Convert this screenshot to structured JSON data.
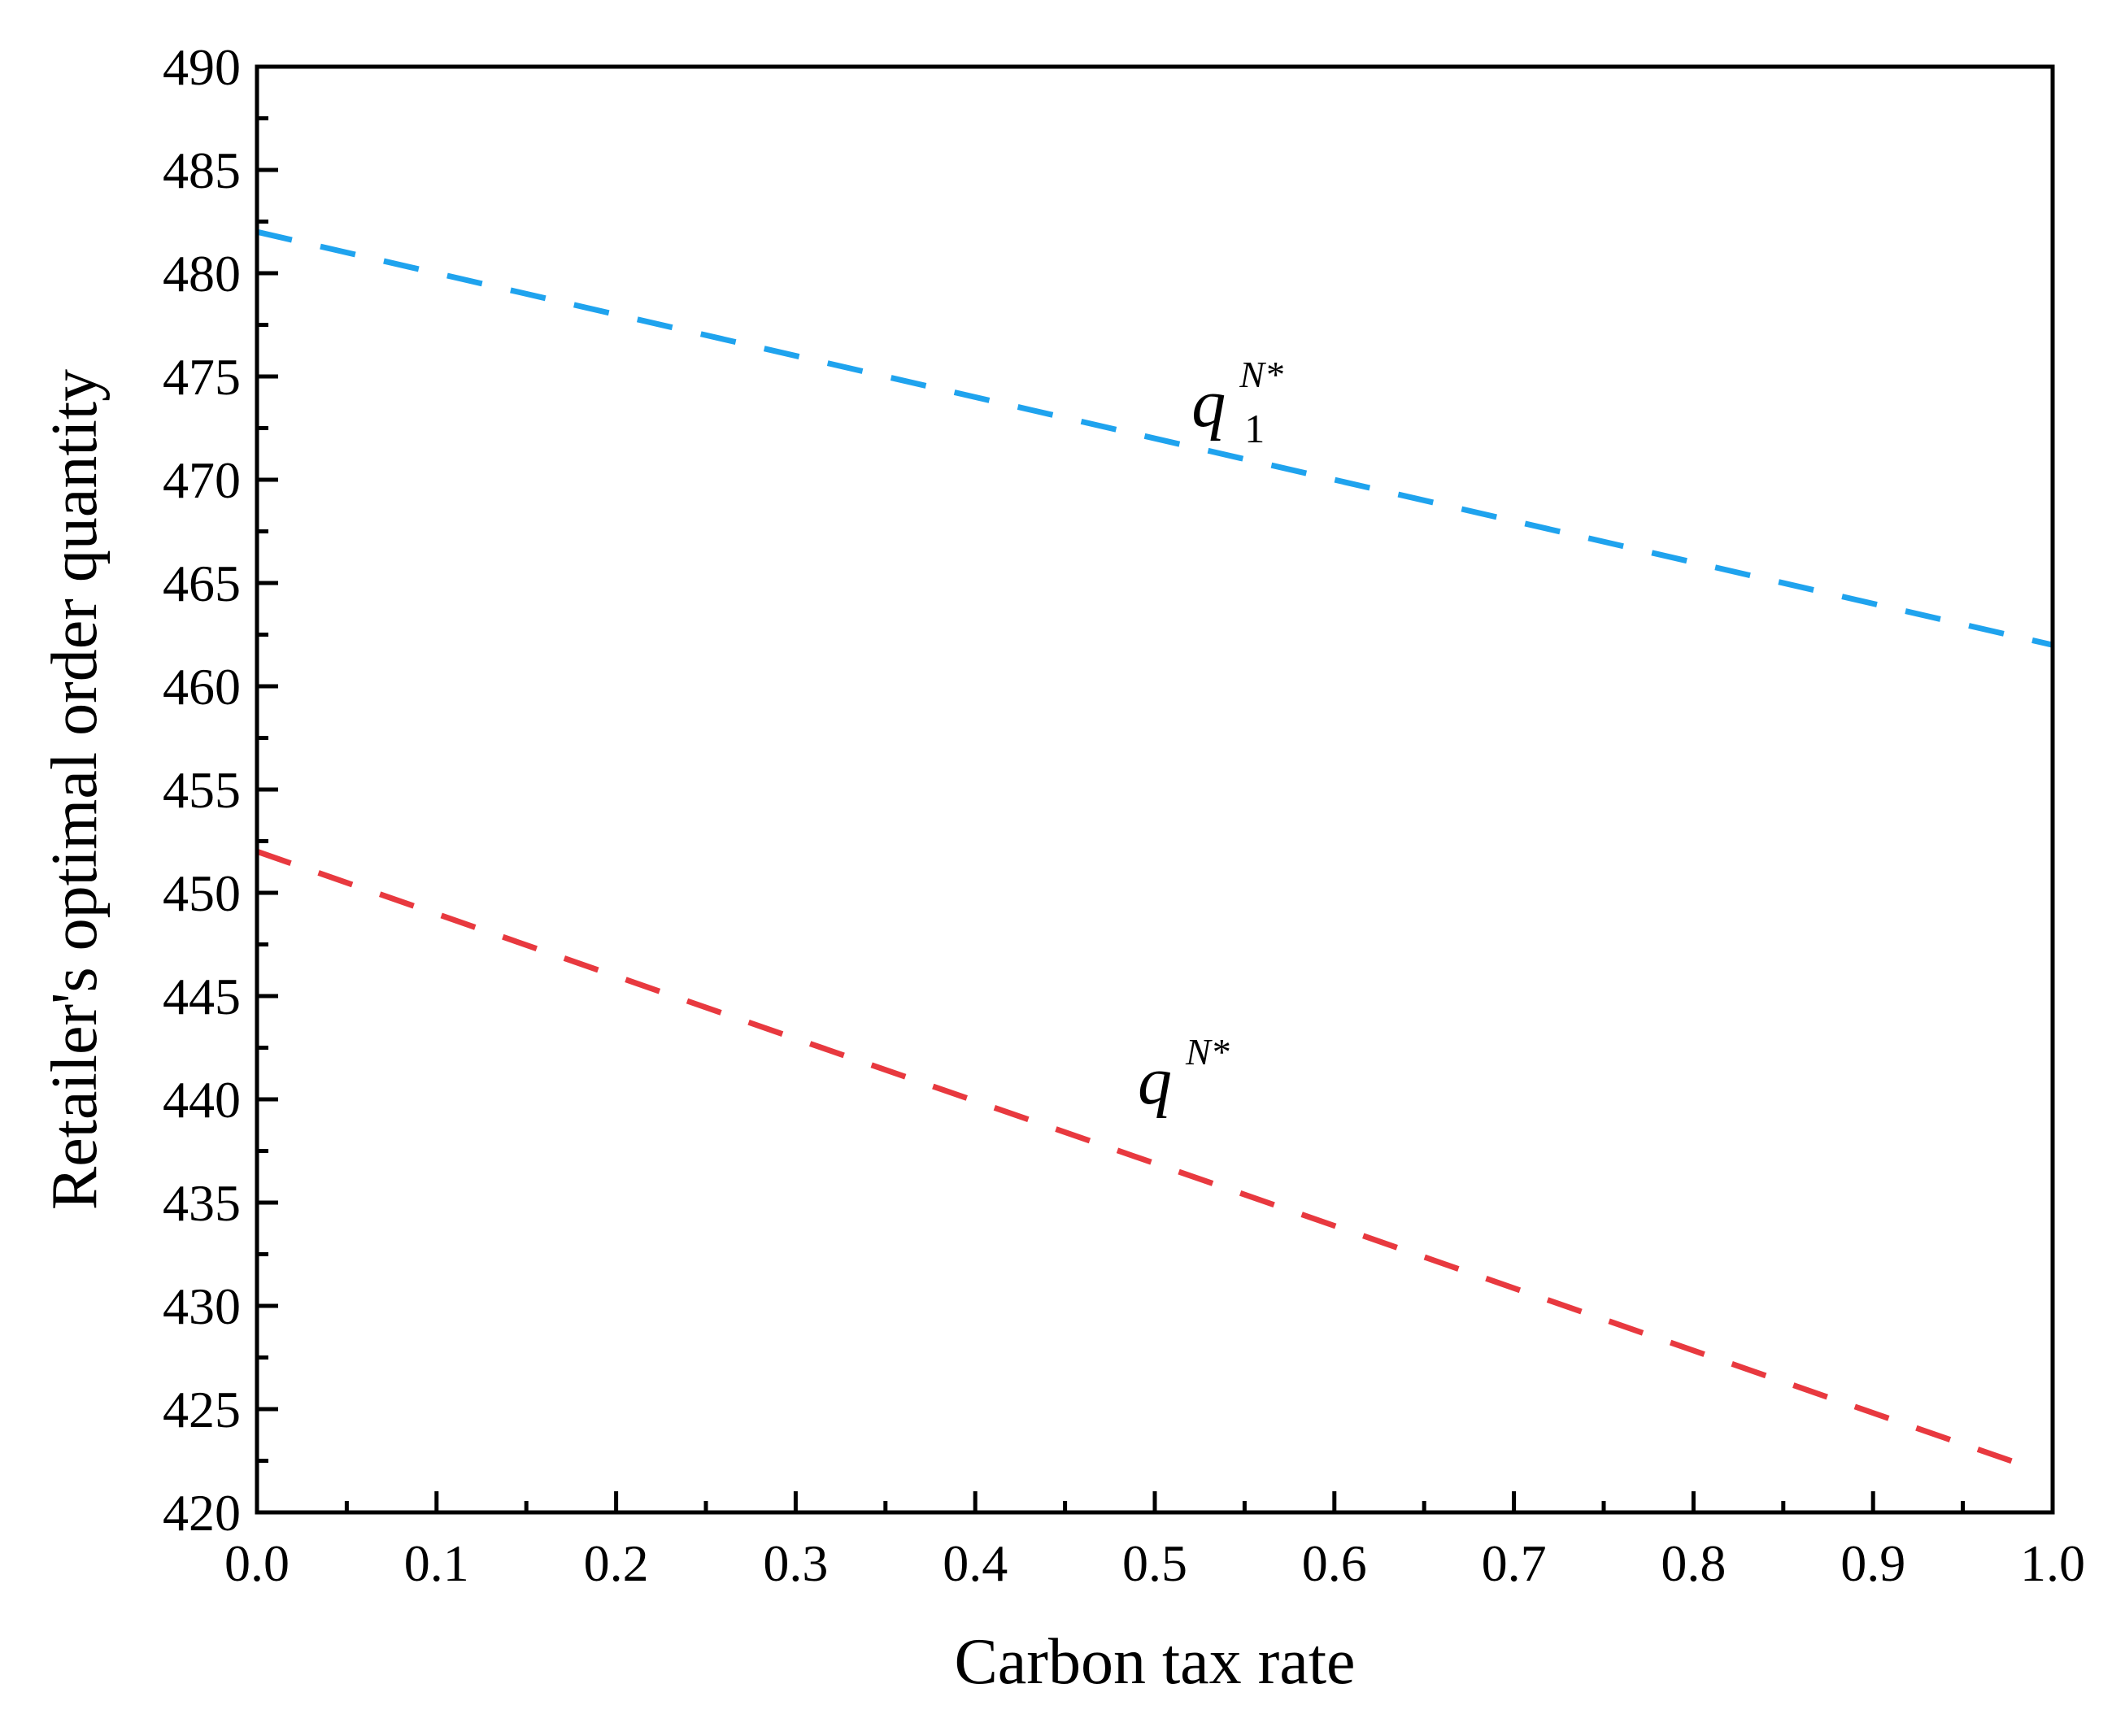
{
  "chart_data": {
    "type": "line",
    "title": "",
    "xlabel": "Carbon tax rate",
    "ylabel": "Retailer's optimal order quantity",
    "xlim": [
      0.0,
      1.0
    ],
    "ylim": [
      420,
      490
    ],
    "x_ticks": [
      "0.0",
      "0.1",
      "0.2",
      "0.3",
      "0.4",
      "0.5",
      "0.6",
      "0.7",
      "0.8",
      "0.9",
      "1.0"
    ],
    "y_ticks": [
      "420",
      "425",
      "430",
      "435",
      "440",
      "445",
      "450",
      "455",
      "460",
      "465",
      "470",
      "475",
      "480",
      "485",
      "490"
    ],
    "grid": false,
    "series": [
      {
        "name": "q1N*",
        "label_base": "q",
        "label_sub": "1",
        "label_sup": "N*",
        "label_at": [
          0.53,
          472.6
        ],
        "color": "#1FA3EE",
        "line_style": "dashed",
        "x": [
          0.0,
          1.0
        ],
        "values": [
          482.0,
          462.0
        ]
      },
      {
        "name": "qN*",
        "label_base": "q",
        "label_sub": "",
        "label_sup": "N*",
        "label_at": [
          0.5,
          439.8
        ],
        "color": "#E8393F",
        "line_style": "dashed",
        "x": [
          0.0,
          0.98
        ],
        "values": [
          452.0,
          422.4
        ]
      }
    ]
  }
}
